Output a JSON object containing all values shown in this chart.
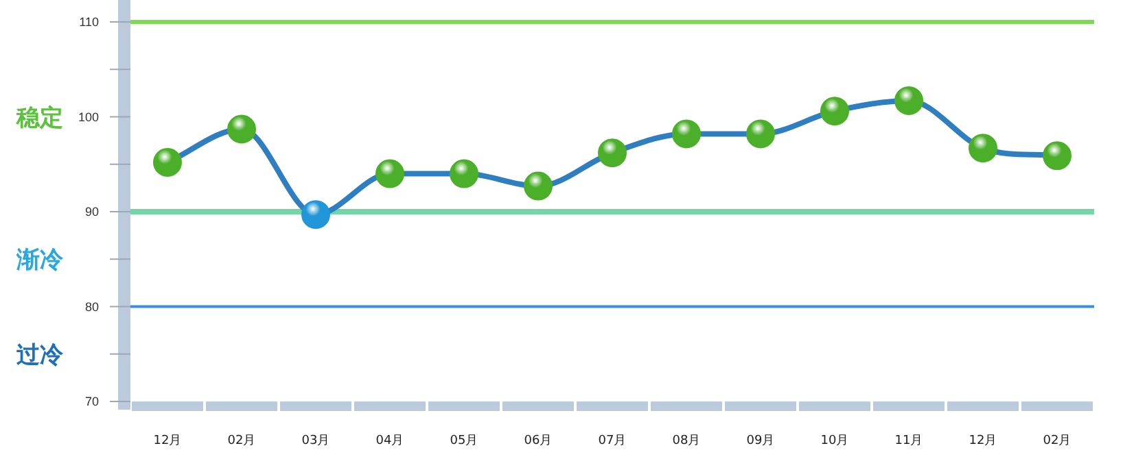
{
  "chart_data": {
    "type": "line",
    "categories": [
      "12月",
      "02月",
      "03月",
      "04月",
      "05月",
      "06月",
      "07月",
      "08月",
      "09月",
      "10月",
      "11月",
      "12月",
      "02月"
    ],
    "series": [
      {
        "color": "#2f7fc0",
        "colors": [
          "#4caf2a",
          "#4caf2a",
          "#2196d8",
          "#4caf2a",
          "#4caf2a",
          "#4caf2a",
          "#4caf2a",
          "#4caf2a",
          "#4caf2a",
          "#4caf2a",
          "#4caf2a",
          "#4caf2a",
          "#4caf2a"
        ],
        "values": [
          95.2,
          98.7,
          89.7,
          94.0,
          94.0,
          92.7,
          96.2,
          98.2,
          98.2,
          100.6,
          101.7,
          96.7,
          95.9
        ]
      }
    ],
    "ylim": [
      70,
      110
    ],
    "yticks": [
      70,
      {
        "value": 75,
        "label": null
      },
      80,
      {
        "value": 85,
        "label": null
      },
      90,
      {
        "value": 95,
        "label": null
      },
      100,
      {
        "value": 105,
        "label": null
      },
      110
    ],
    "marker": "circle",
    "line_style": "solid",
    "ref_lines": [
      {
        "axis": "y",
        "value": 110,
        "color": "#7ed957"
      },
      {
        "axis": "y",
        "value": 90,
        "color": "#72d6a8"
      },
      {
        "axis": "y",
        "value": 80,
        "color": "#3a8fd6"
      }
    ],
    "annotations": [
      "稳定",
      "渐冷",
      "过冷"
    ]
  }
}
